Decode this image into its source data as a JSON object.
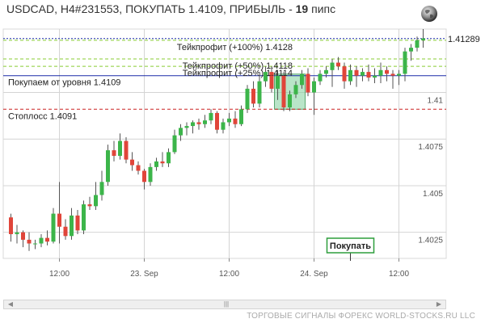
{
  "header": {
    "title_prefix": "USDCAD, H4#231553, ПОКУПАТЬ 1.4109, ПРИБЫЛЬ - ",
    "title_pips": "19",
    "title_suffix": " пипс"
  },
  "footer": {
    "text": "ТОРГОВЫЕ СИГНАЛЫ ФОРЕКС WORLD-STOCKS.RU LLC"
  },
  "colors": {
    "bull": "#3cb54a",
    "bear": "#e0453a",
    "entry": "#1a2aa8",
    "stop": "#cc2222",
    "tp": "#88cc33",
    "current": "#1a2aa8",
    "box": "#7fcf9a"
  },
  "chart_data": {
    "type": "candlestick",
    "symbol": "USDCAD",
    "timeframe": "H4",
    "ylim": [
      4011,
      4134
    ],
    "y_ticks": [
      {
        "value": 4025,
        "label": "1.4025"
      },
      {
        "value": 4050,
        "label": "1.405"
      },
      {
        "value": 4075,
        "label": "1.4075"
      },
      {
        "value": 4100,
        "label": "1.41"
      }
    ],
    "x_ticks": [
      {
        "index": 8,
        "label": "12:00"
      },
      {
        "index": 22,
        "label": "23. Sep"
      },
      {
        "index": 36,
        "label": "12:00"
      },
      {
        "index": 50,
        "label": "24. Sep"
      },
      {
        "index": 64,
        "label": "12:00"
      }
    ],
    "current_price": {
      "value": 4128.9,
      "label": "1.41289"
    },
    "levels": [
      {
        "name": "tp100",
        "value": 4128,
        "label": "Тейкпрофит (+100%) 1.4128",
        "style": "tp"
      },
      {
        "name": "tp50",
        "value": 4118,
        "label": "Тейкпрофит (+50%) 1.4118",
        "style": "tp"
      },
      {
        "name": "tp25",
        "value": 4114,
        "label": "Тейкпрофит (+25%) 1.4114",
        "style": "tp"
      },
      {
        "name": "entry",
        "value": 4109,
        "label": "Покупаем от уровня 1.4109",
        "style": "entry"
      },
      {
        "name": "stop",
        "value": 4091,
        "label": "Стоплосс 1.4091",
        "style": "stop"
      }
    ],
    "signal_box": {
      "from": 44,
      "to": 48,
      "low": 4091,
      "high": 4109
    },
    "buy_marker": {
      "label": "Покупать",
      "index": 56
    },
    "candles": [
      [
        4033,
        4035,
        4020,
        4024
      ],
      [
        4024,
        4029,
        4019,
        4025
      ],
      [
        4025,
        4026,
        4017,
        4021
      ],
      [
        4021,
        4025,
        4015,
        4019
      ],
      [
        4019,
        4021,
        4016,
        4019
      ],
      [
        4019,
        4024,
        4017,
        4022
      ],
      [
        4022,
        4026,
        4018,
        4020
      ],
      [
        4020,
        4038,
        4019,
        4035
      ],
      [
        4035,
        4052,
        4019,
        4028
      ],
      [
        4028,
        4032,
        4021,
        4023
      ],
      [
        4023,
        4038,
        4021,
        4034
      ],
      [
        4034,
        4037,
        4024,
        4026
      ],
      [
        4026,
        4042,
        4024,
        4040
      ],
      [
        4040,
        4044,
        4037,
        4039
      ],
      [
        4039,
        4052,
        4037,
        4045
      ],
      [
        4045,
        4058,
        4042,
        4052
      ],
      [
        4052,
        4072,
        4050,
        4069
      ],
      [
        4069,
        4074,
        4063,
        4066
      ],
      [
        4066,
        4078,
        4064,
        4074
      ],
      [
        4074,
        4076,
        4062,
        4064
      ],
      [
        4064,
        4068,
        4058,
        4061
      ],
      [
        4061,
        4063,
        4056,
        4058
      ],
      [
        4058,
        4059,
        4048,
        4052
      ],
      [
        4052,
        4062,
        4050,
        4060
      ],
      [
        4060,
        4065,
        4058,
        4063
      ],
      [
        4063,
        4068,
        4060,
        4062
      ],
      [
        4062,
        4070,
        4060,
        4068
      ],
      [
        4068,
        4080,
        4067,
        4077
      ],
      [
        4077,
        4083,
        4074,
        4081
      ],
      [
        4081,
        4084,
        4077,
        4082
      ],
      [
        4082,
        4085,
        4078,
        4084
      ],
      [
        4084,
        4086,
        4080,
        4083
      ],
      [
        4083,
        4088,
        4081,
        4085
      ],
      [
        4085,
        4091,
        4083,
        4089
      ],
      [
        4089,
        4090,
        4078,
        4080
      ],
      [
        4080,
        4086,
        4078,
        4084
      ],
      [
        4084,
        4089,
        4082,
        4086
      ],
      [
        4086,
        4090,
        4081,
        4083
      ],
      [
        4083,
        4093,
        4082,
        4091
      ],
      [
        4091,
        4104,
        4089,
        4102
      ],
      [
        4102,
        4106,
        4092,
        4094
      ],
      [
        4094,
        4109,
        4092,
        4106
      ],
      [
        4106,
        4114,
        4103,
        4111
      ],
      [
        4111,
        4114,
        4100,
        4102
      ],
      [
        4102,
        4112,
        4096,
        4109
      ],
      [
        4109,
        4111,
        4090,
        4092
      ],
      [
        4092,
        4101,
        4090,
        4099
      ],
      [
        4099,
        4106,
        4097,
        4104
      ],
      [
        4104,
        4112,
        4102,
        4110
      ],
      [
        4110,
        4113,
        4098,
        4100
      ],
      [
        4100,
        4108,
        4088,
        4106
      ],
      [
        4106,
        4112,
        4104,
        4110
      ],
      [
        4110,
        4114,
        4108,
        4112
      ],
      [
        4112,
        4118,
        4103,
        4116
      ],
      [
        4116,
        4119,
        4112,
        4114
      ],
      [
        4114,
        4116,
        4102,
        4106
      ],
      [
        4106,
        4115,
        4104,
        4112
      ],
      [
        4112,
        4114,
        4103,
        4109
      ],
      [
        4109,
        4113,
        4106,
        4111
      ],
      [
        4111,
        4115,
        4106,
        4108
      ],
      [
        4108,
        4113,
        4105,
        4109
      ],
      [
        4109,
        4116,
        4105,
        4112
      ],
      [
        4112,
        4114,
        4106,
        4110
      ],
      [
        4110,
        4112,
        4102,
        4109
      ],
      [
        4109,
        4112,
        4104,
        4110
      ],
      [
        4110,
        4124,
        4106,
        4122
      ],
      [
        4122,
        4126,
        4117,
        4124
      ],
      [
        4124,
        4130,
        4122,
        4128
      ],
      [
        4128,
        4134,
        4124,
        4129
      ]
    ]
  }
}
